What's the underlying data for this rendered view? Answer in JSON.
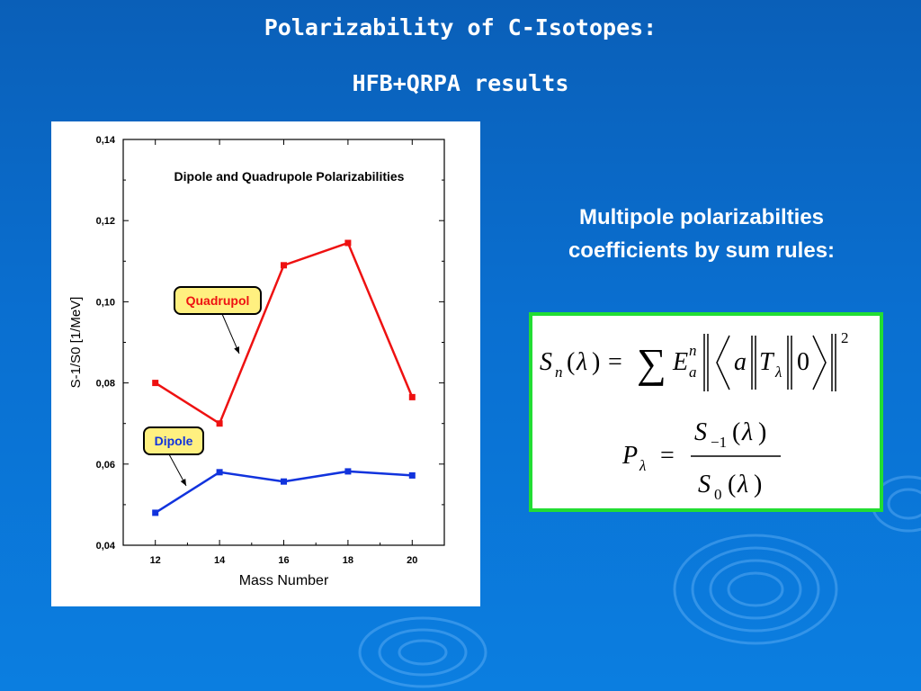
{
  "slide": {
    "title_line1": "Polarizability of C-Isotopes:",
    "title_line2": "HFB+QRPA results",
    "caption_line1": "Multipole polarizabilties",
    "caption_line2": "coefficients by sum rules:",
    "background_color": "#0a6fd0",
    "formula_border_color": "#22dd33"
  },
  "formulas": {
    "sum_rule": "S_n(λ) = Σ E_a^n |⟨a‖T_λ‖0⟩|^2",
    "polarizability": "P_λ = S_{-1}(λ) / S_0(λ)"
  },
  "chart_data": {
    "type": "line",
    "title": "Dipole and Quadrupole Polarizabilities",
    "xlabel": "Mass Number",
    "ylabel": "S-1/S0 [1/MeV]",
    "x": [
      12,
      14,
      16,
      18,
      20
    ],
    "xlim": [
      11,
      21
    ],
    "ylim": [
      0.04,
      0.14
    ],
    "x_ticks": [
      12,
      14,
      16,
      18,
      20
    ],
    "y_ticks": [
      0.04,
      0.06,
      0.08,
      0.1,
      0.12,
      0.14
    ],
    "y_tick_labels": [
      "0,04",
      "0,06",
      "0,08",
      "0,10",
      "0,12",
      "0,14"
    ],
    "grid": false,
    "series": [
      {
        "name": "Quadrupol",
        "values": [
          0.08,
          0.07,
          0.109,
          0.1145,
          0.0765
        ],
        "color": "#ee1111"
      },
      {
        "name": "Dipole",
        "values": [
          0.048,
          0.058,
          0.0557,
          0.0582,
          0.0572
        ],
        "color": "#1133dd"
      }
    ]
  }
}
